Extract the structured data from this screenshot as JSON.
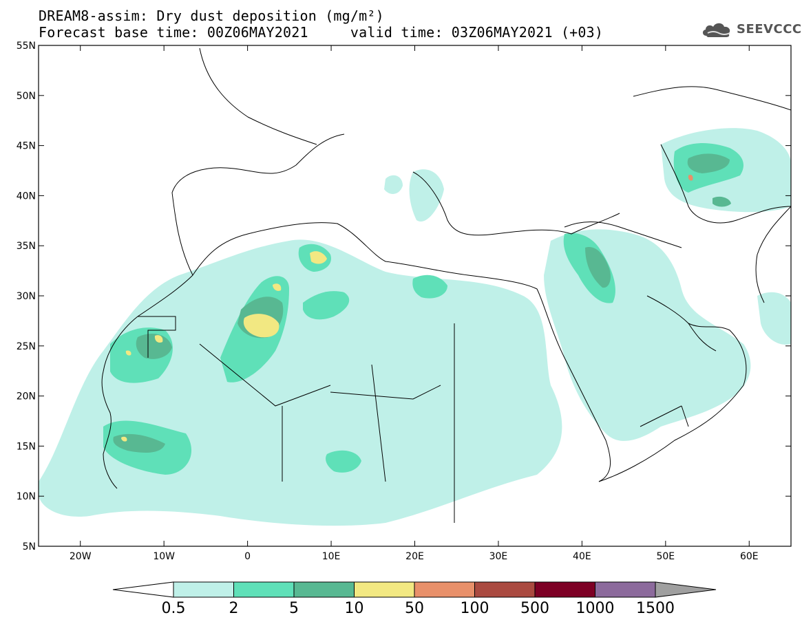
{
  "title": {
    "line1": "DREAM8-assim: Dry dust deposition (mg/m²)",
    "line2": "Forecast base time: 00Z06MAY2021     valid time: 03Z06MAY2021 (+03)"
  },
  "logo": {
    "text": "SEEVCCC",
    "icon": "cloud-icon"
  },
  "map": {
    "lon_range": [
      -25,
      65
    ],
    "lat_range": [
      5,
      55
    ],
    "lat_ticks": [
      "5N",
      "10N",
      "15N",
      "20N",
      "25N",
      "30N",
      "35N",
      "40N",
      "45N",
      "50N",
      "55N"
    ],
    "lon_ticks": [
      "20W",
      "10W",
      "0",
      "10E",
      "20E",
      "30E",
      "40E",
      "50E",
      "60E"
    ]
  },
  "colorbar": {
    "labels": [
      "0.5",
      "2",
      "5",
      "10",
      "50",
      "100",
      "500",
      "1000",
      "1500"
    ],
    "colors": [
      "#bff0e8",
      "#5fe0b8",
      "#58b892",
      "#f2e882",
      "#e8906a",
      "#aa4a40",
      "#7d0025",
      "#8c6a9c"
    ],
    "under_color": "#ffffff",
    "over_color": "#a0a0a0"
  }
}
